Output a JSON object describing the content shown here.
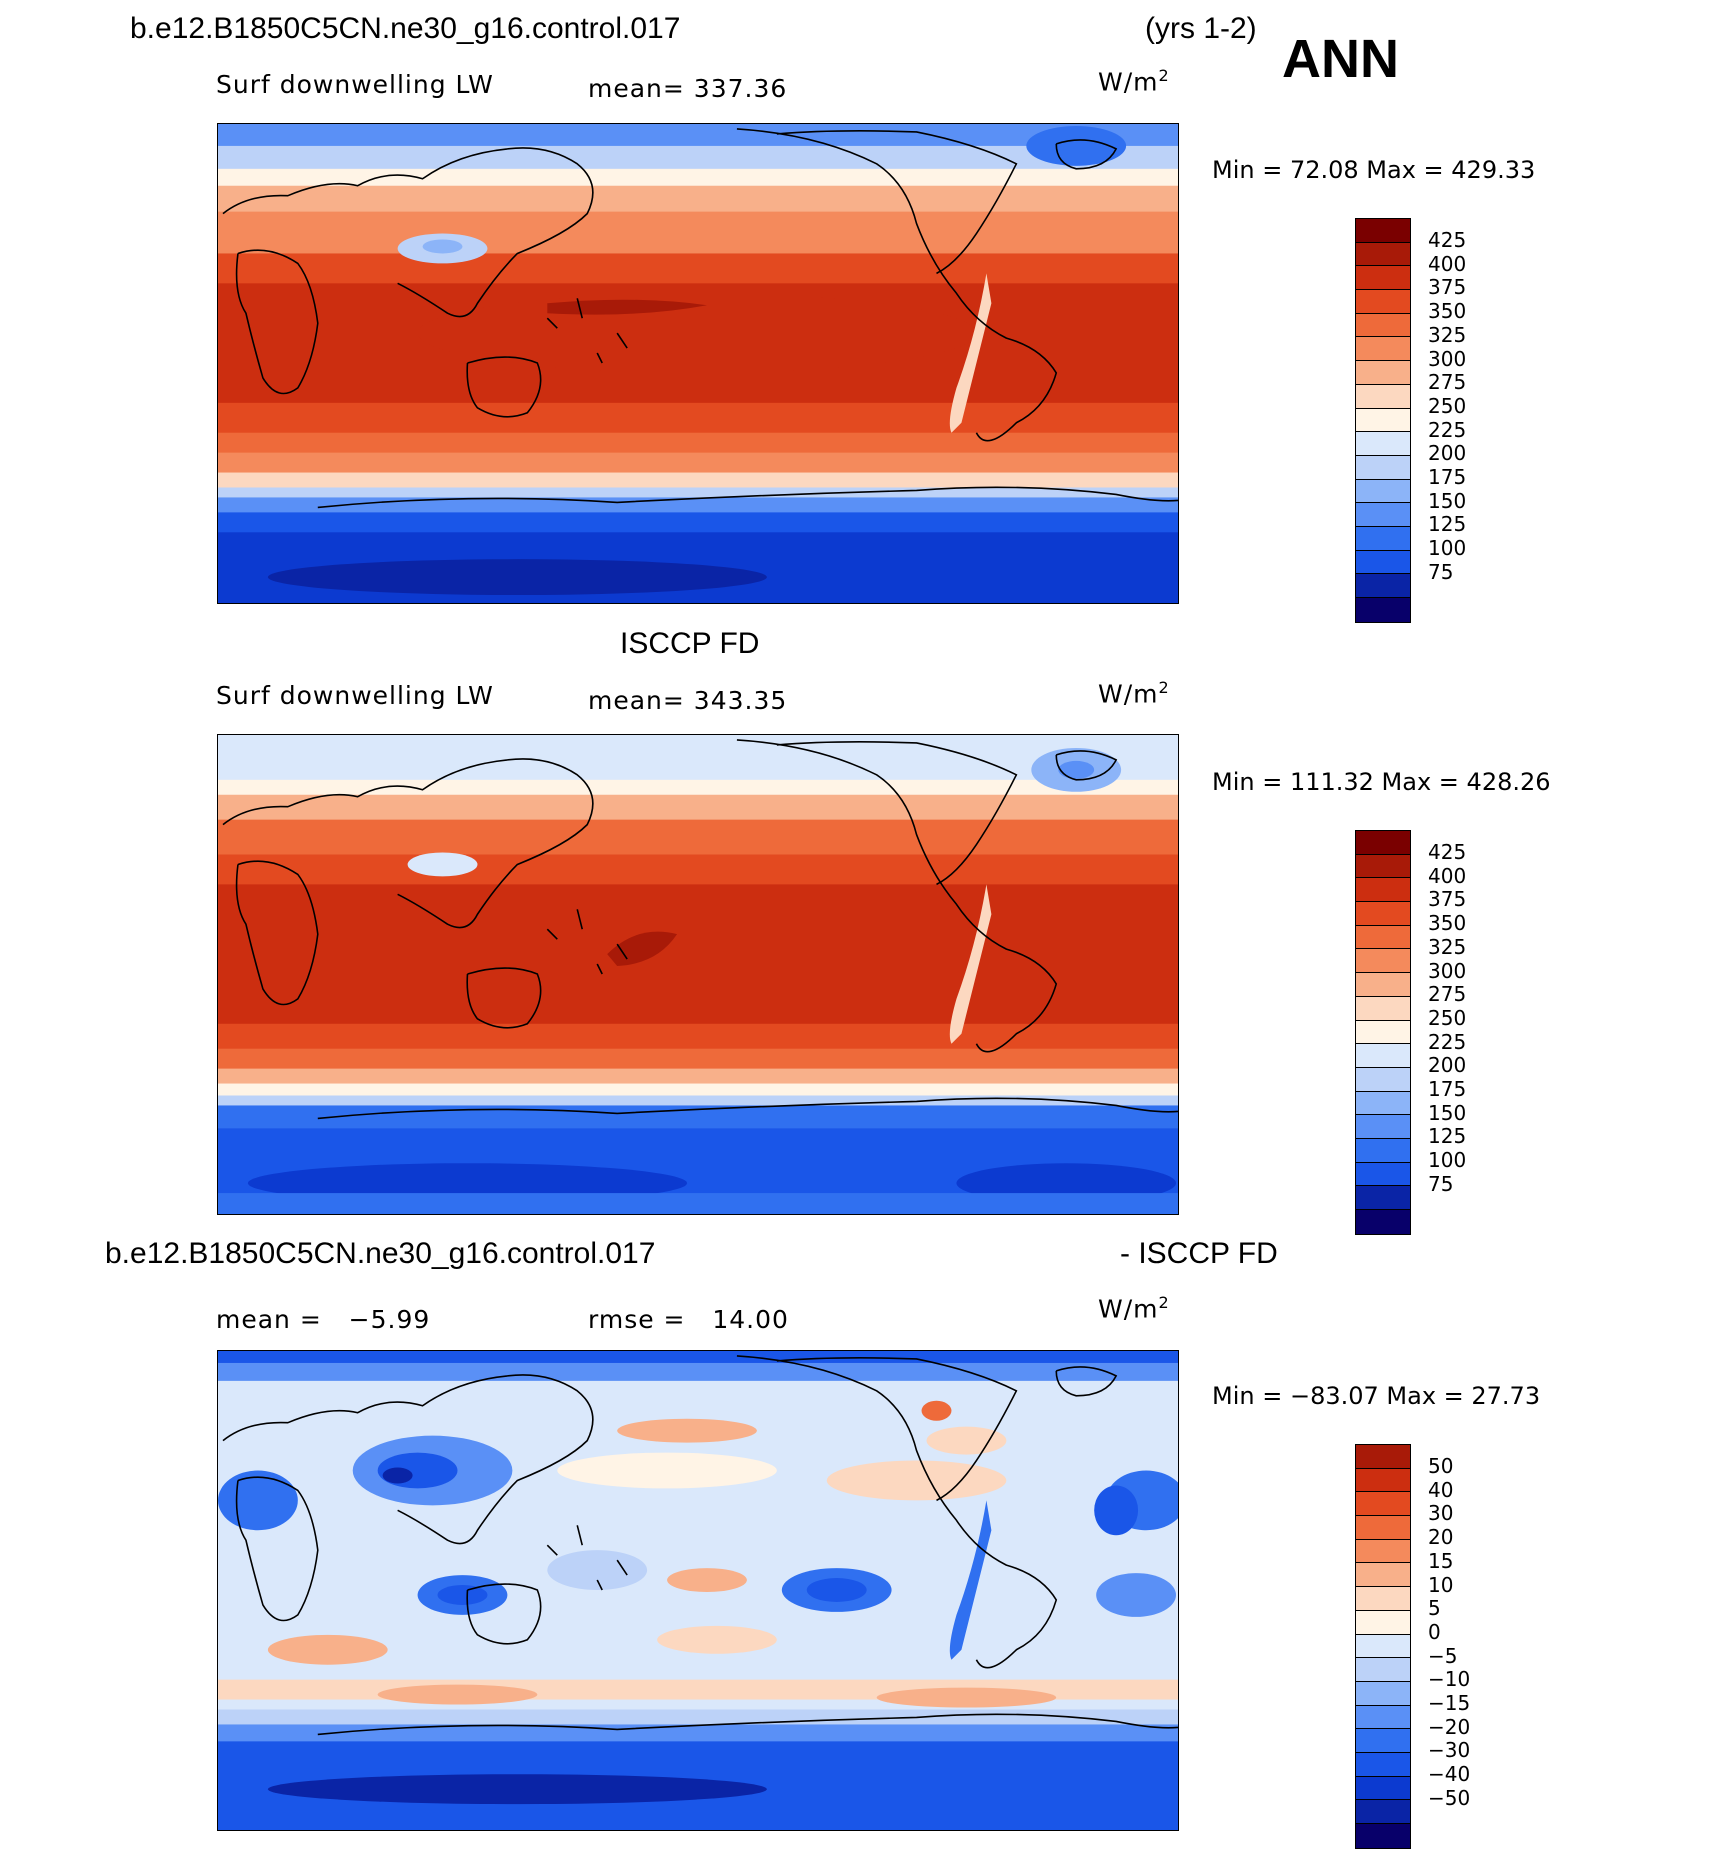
{
  "season": "ANN",
  "years": "(yrs 1-2)",
  "case_name": "b.e12.B1850C5CN.ne30_g16.control.017",
  "units": {
    "base": "W/m",
    "exp": "2"
  },
  "colors": {
    "abs_scale": [
      "#08006a",
      "#0a24a6",
      "#0c3ad0",
      "#1a56e8",
      "#3070f0",
      "#5a90f6",
      "#8cb4f8",
      "#bcd2f8",
      "#dae8fb",
      "#fff4e6",
      "#fcd8c0",
      "#f8b08a",
      "#f48a5c",
      "#ee6a3a",
      "#e34a20",
      "#cc2e10",
      "#a81a08",
      "#7a0000"
    ],
    "diff_scale": [
      "#08006a",
      "#0a24a6",
      "#0c3ad0",
      "#1a56e8",
      "#3070f0",
      "#5a90f6",
      "#8cb4f8",
      "#bcd2f8",
      "#dae8fb",
      "#fff4e6",
      "#fcd8c0",
      "#f8b08a",
      "#f48a5c",
      "#ee6a3a",
      "#e34a20",
      "#cc2e10",
      "#a81a08"
    ]
  },
  "panels": [
    {
      "id": "model",
      "variable": "Surf downwelling LW",
      "mean_text": "mean= 337.36",
      "minmax_text": "Min =  72.08 Max = 429.33",
      "colorbar_labels": [
        "425",
        "400",
        "375",
        "350",
        "325",
        "300",
        "275",
        "250",
        "225",
        "200",
        "175",
        "150",
        "125",
        "100",
        "75"
      ]
    },
    {
      "id": "obs",
      "header": "ISCCP FD",
      "variable": "Surf downwelling LW",
      "mean_text": "mean= 343.35",
      "minmax_text": "Min = 111.32 Max = 428.26",
      "colorbar_labels": [
        "425",
        "400",
        "375",
        "350",
        "325",
        "300",
        "275",
        "250",
        "225",
        "200",
        "175",
        "150",
        "125",
        "100",
        "75"
      ]
    },
    {
      "id": "diff",
      "header_right": "- ISCCP FD",
      "mean_label": "mean =",
      "mean_value": "−5.99",
      "rmse_label": "rmse =",
      "rmse_value": "14.00",
      "minmax_text": "Min = −83.07 Max =  27.73",
      "colorbar_labels": [
        "50",
        "40",
        "30",
        "20",
        "15",
        "10",
        "5",
        "0",
        "−5",
        "−10",
        "−15",
        "−20",
        "−30",
        "−40",
        "−50"
      ]
    }
  ]
}
